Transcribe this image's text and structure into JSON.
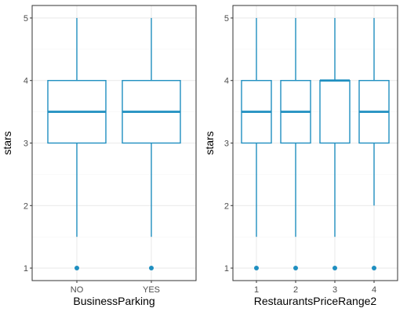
{
  "colors": {
    "box": "#1f8fc0",
    "grid_major": "#ebebeb",
    "grid_minor": "#f5f5f5",
    "panel_border": "#333333",
    "tick_text": "#4d4d4d"
  },
  "chart_data": [
    {
      "type": "boxplot",
      "xlabel": "BusinessParking",
      "ylabel": "stars",
      "ylim": [
        1,
        5
      ],
      "yticks": [
        "1",
        "2",
        "3",
        "4",
        "5"
      ],
      "categories": [
        "NO",
        "YES"
      ],
      "boxes": [
        {
          "category": "NO",
          "whisker_low": 1.5,
          "q1": 3,
          "median": 3.5,
          "q3": 4,
          "whisker_high": 5,
          "outliers": [
            1
          ]
        },
        {
          "category": "YES",
          "whisker_low": 1.5,
          "q1": 3,
          "median": 3.5,
          "q3": 4,
          "whisker_high": 5,
          "outliers": [
            1
          ]
        }
      ],
      "grid": true
    },
    {
      "type": "boxplot",
      "xlabel": "RestaurantsPriceRange2",
      "ylabel": "stars",
      "ylim": [
        1,
        5
      ],
      "yticks": [
        "1",
        "2",
        "3",
        "4",
        "5"
      ],
      "categories": [
        "1",
        "2",
        "3",
        "4"
      ],
      "boxes": [
        {
          "category": "1",
          "whisker_low": 1.5,
          "q1": 3,
          "median": 3.5,
          "q3": 4,
          "whisker_high": 5,
          "outliers": [
            1
          ]
        },
        {
          "category": "2",
          "whisker_low": 1.5,
          "q1": 3,
          "median": 3.5,
          "q3": 4,
          "whisker_high": 5,
          "outliers": [
            1
          ]
        },
        {
          "category": "3",
          "whisker_low": 1.5,
          "q1": 3,
          "median": 4,
          "q3": 4,
          "whisker_high": 5,
          "outliers": [
            1
          ]
        },
        {
          "category": "4",
          "whisker_low": 2,
          "q1": 3,
          "median": 3.5,
          "q3": 4,
          "whisker_high": 5,
          "outliers": [
            1
          ]
        }
      ],
      "grid": true
    }
  ]
}
